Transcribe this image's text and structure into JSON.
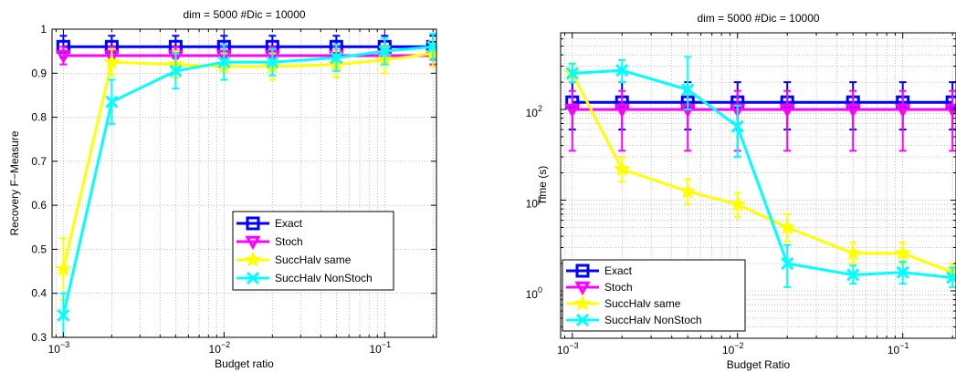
{
  "chart_data": [
    {
      "type": "line",
      "title": "dim = 5000  #Dic = 10000",
      "xlabel": "Budget ratio",
      "ylabel": "Recovery F−Measure",
      "xscale": "log",
      "yscale": "linear",
      "xlim": [
        0.00085,
        0.21
      ],
      "ylim": [
        0.3,
        1.0
      ],
      "xticks": [
        {
          "v": 0.001,
          "mant": "10",
          "exp": "−3"
        },
        {
          "v": 0.01,
          "mant": "10",
          "exp": "−2"
        },
        {
          "v": 0.1,
          "mant": "10",
          "exp": "−1"
        }
      ],
      "yticks": [
        {
          "v": 0.3,
          "label": "0.3"
        },
        {
          "v": 0.4,
          "label": "0.4"
        },
        {
          "v": 0.5,
          "label": "0.5"
        },
        {
          "v": 0.6,
          "label": "0.6"
        },
        {
          "v": 0.7,
          "label": "0.7"
        },
        {
          "v": 0.8,
          "label": "0.8"
        },
        {
          "v": 0.9,
          "label": "0.9"
        },
        {
          "v": 1.0,
          "label": "1"
        }
      ],
      "grid": true,
      "legend_position": "lower-right",
      "x": [
        0.001,
        0.002,
        0.005,
        0.01,
        0.02,
        0.05,
        0.1,
        0.2
      ],
      "series": [
        {
          "name": "Exact",
          "color": "#0000ff",
          "marker": "square",
          "y": [
            0.96,
            0.96,
            0.96,
            0.96,
            0.96,
            0.96,
            0.96,
            0.96
          ],
          "err": [
            0.025,
            0.025,
            0.025,
            0.025,
            0.025,
            0.025,
            0.025,
            0.025
          ]
        },
        {
          "name": "Stoch",
          "color": "#ff00ff",
          "marker": "triangle-down",
          "y": [
            0.94,
            0.94,
            0.94,
            0.94,
            0.94,
            0.94,
            0.94,
            0.94
          ],
          "err": [
            0.02,
            0.02,
            0.02,
            0.02,
            0.02,
            0.02,
            0.02,
            0.02
          ]
        },
        {
          "name": "SuccHalv same",
          "color": "#ffff00",
          "marker": "star",
          "y": [
            0.455,
            0.925,
            0.92,
            0.915,
            0.915,
            0.92,
            0.93,
            0.945
          ],
          "err": [
            0.07,
            0.03,
            0.03,
            0.03,
            0.03,
            0.03,
            0.03,
            0.03
          ]
        },
        {
          "name": "SuccHalv NonStoch",
          "color": "#00ffff",
          "marker": "x",
          "y": [
            0.35,
            0.835,
            0.905,
            0.925,
            0.925,
            0.935,
            0.95,
            0.96
          ],
          "err": [
            0.05,
            0.05,
            0.04,
            0.04,
            0.03,
            0.03,
            0.03,
            0.03
          ]
        }
      ]
    },
    {
      "type": "line",
      "title": "dim = 5000  #Dic = 10000",
      "xlabel": "Budget Ratio",
      "ylabel": "Time (s)",
      "xscale": "log",
      "yscale": "log",
      "xlim": [
        0.00085,
        0.21
      ],
      "ylim": [
        0.3,
        700
      ],
      "xticks": [
        {
          "v": 0.001,
          "mant": "10",
          "exp": "−3"
        },
        {
          "v": 0.01,
          "mant": "10",
          "exp": "−2"
        },
        {
          "v": 0.1,
          "mant": "10",
          "exp": "−1"
        }
      ],
      "yticks": [
        {
          "v": 1,
          "mant": "10",
          "exp": "0"
        },
        {
          "v": 10,
          "mant": "10",
          "exp": "1"
        },
        {
          "v": 100,
          "mant": "10",
          "exp": "2"
        }
      ],
      "grid": true,
      "legend_position": "lower-left",
      "x": [
        0.001,
        0.002,
        0.005,
        0.01,
        0.02,
        0.05,
        0.1,
        0.2
      ],
      "series": [
        {
          "name": "Exact",
          "color": "#0000ff",
          "marker": "square",
          "y": [
            120,
            120,
            120,
            120,
            120,
            120,
            120,
            120
          ],
          "elo": [
            60,
            60,
            60,
            60,
            60,
            60,
            60,
            60
          ],
          "ehi": [
            200,
            200,
            200,
            200,
            200,
            200,
            200,
            200
          ]
        },
        {
          "name": "Stoch",
          "color": "#ff00ff",
          "marker": "triangle-down",
          "y": [
            100,
            100,
            100,
            100,
            100,
            100,
            100,
            100
          ],
          "elo": [
            35,
            35,
            35,
            35,
            35,
            35,
            35,
            35
          ],
          "ehi": [
            160,
            160,
            160,
            160,
            160,
            160,
            160,
            160
          ]
        },
        {
          "name": "SuccHalv same",
          "color": "#ffff00",
          "marker": "star",
          "y": [
            250,
            22,
            12.5,
            9,
            5,
            2.6,
            2.6,
            1.6
          ],
          "elo": [
            200,
            16,
            9,
            6.5,
            3.5,
            2.0,
            2.0,
            1.3
          ],
          "ehi": [
            320,
            30,
            17,
            12,
            7,
            3.4,
            3.4,
            2.0
          ]
        },
        {
          "name": "SuccHalv NonStoch",
          "color": "#00ffff",
          "marker": "x",
          "y": [
            250,
            270,
            165,
            65,
            2.0,
            1.5,
            1.6,
            1.4
          ],
          "elo": [
            200,
            200,
            100,
            30,
            1.1,
            1.2,
            1.2,
            1.1
          ],
          "ehi": [
            320,
            350,
            380,
            110,
            3.2,
            1.9,
            2.1,
            1.8
          ]
        }
      ]
    }
  ]
}
